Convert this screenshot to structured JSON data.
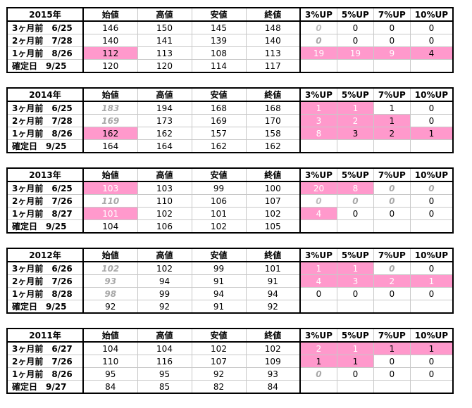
{
  "headers": [
    "始値",
    "高値",
    "安値",
    "終値",
    "3%UP",
    "5%UP",
    "7%UP",
    "10%UP"
  ],
  "blocks": [
    {
      "title": "2015年",
      "rows": [
        {
          "label": "3ヶ月前　6/25",
          "values": [
            "146",
            "150",
            "145",
            "148",
            "0",
            "0",
            "0",
            "0"
          ],
          "styles": [
            "",
            "",
            "",
            "",
            "i",
            "",
            "",
            ""
          ]
        },
        {
          "label": "2ヶ月前　7/28",
          "values": [
            "140",
            "141",
            "139",
            "140",
            "0",
            "0",
            "0",
            "0"
          ],
          "styles": [
            "",
            "",
            "",
            "",
            "gi",
            "",
            "",
            ""
          ]
        },
        {
          "label": "1ヶ月前　8/26",
          "values": [
            "112",
            "113",
            "108",
            "113",
            "19",
            "19",
            "9",
            "4"
          ],
          "styles": [
            "p",
            "",
            "",
            "",
            "pw",
            "pw",
            "pw",
            "pd"
          ]
        },
        {
          "label": "確定日　9/25",
          "values": [
            "120",
            "120",
            "114",
            "117",
            "",
            "",
            "",
            ""
          ],
          "styles": [
            "",
            "",
            "",
            "",
            "",
            "",
            "",
            ""
          ]
        }
      ]
    },
    {
      "title": "2014年",
      "rows": [
        {
          "label": "3ヶ月前　6/25",
          "values": [
            "183",
            "194",
            "168",
            "168",
            "1",
            "1",
            "1",
            "0"
          ],
          "styles": [
            "g",
            "",
            "",
            "",
            "pw",
            "pw",
            "",
            ""
          ]
        },
        {
          "label": "2ヶ月前　7/28",
          "values": [
            "169",
            "173",
            "169",
            "170",
            "3",
            "2",
            "1",
            "0"
          ],
          "styles": [
            "g",
            "",
            "",
            "",
            "pw",
            "pw",
            "pd",
            ""
          ]
        },
        {
          "label": "1ヶ月前　8/26",
          "values": [
            "162",
            "162",
            "157",
            "158",
            "8",
            "3",
            "2",
            "1"
          ],
          "styles": [
            "p",
            "",
            "",
            "",
            "pw",
            "pd",
            "pd",
            "pd"
          ]
        },
        {
          "label": "確定日　9/25",
          "values": [
            "164",
            "164",
            "162",
            "162",
            "",
            "",
            "",
            ""
          ],
          "styles": [
            "",
            "",
            "",
            "",
            "",
            "",
            "",
            ""
          ]
        }
      ]
    },
    {
      "title": "2013年",
      "rows": [
        {
          "label": "3ヶ月前　6/25",
          "values": [
            "103",
            "103",
            "99",
            "100",
            "20",
            "8",
            "0",
            "0"
          ],
          "styles": [
            "pw",
            "",
            "",
            "",
            "pw",
            "pw",
            "g",
            "g"
          ]
        },
        {
          "label": "2ヶ月前　7/26",
          "values": [
            "110",
            "110",
            "106",
            "107",
            "0",
            "0",
            "0",
            "0"
          ],
          "styles": [
            "g",
            "",
            "",
            "",
            "i",
            "gi",
            "g",
            ""
          ]
        },
        {
          "label": "1ヶ月前　8/27",
          "values": [
            "101",
            "102",
            "101",
            "102",
            "4",
            "0",
            "0",
            "0"
          ],
          "styles": [
            "pw",
            "",
            "",
            "",
            "pw",
            "",
            "",
            ""
          ]
        },
        {
          "label": "確定日　9/25",
          "values": [
            "104",
            "106",
            "102",
            "105",
            "",
            "",
            "",
            ""
          ],
          "styles": [
            "",
            "",
            "",
            "",
            "",
            "",
            "",
            ""
          ]
        }
      ]
    },
    {
      "title": "2012年",
      "rows": [
        {
          "label": "3ヶ月前　6/26",
          "values": [
            "102",
            "102",
            "99",
            "101",
            "1",
            "1",
            "0",
            "0"
          ],
          "styles": [
            "g",
            "",
            "",
            "",
            "pw",
            "pw",
            "g",
            ""
          ]
        },
        {
          "label": "2ヶ月前　7/26",
          "values": [
            "93",
            "94",
            "91",
            "91",
            "4",
            "3",
            "2",
            "1"
          ],
          "styles": [
            "g",
            "",
            "",
            "",
            "pw",
            "pw",
            "pw",
            "pw"
          ]
        },
        {
          "label": "1ヶ月前　8/28",
          "values": [
            "98",
            "99",
            "94",
            "94",
            "0",
            "0",
            "0",
            "0"
          ],
          "styles": [
            "g",
            "",
            "",
            "",
            "",
            "",
            "",
            ""
          ]
        },
        {
          "label": "確定日　9/25",
          "values": [
            "92",
            "92",
            "91",
            "92",
            "",
            "",
            "",
            ""
          ],
          "styles": [
            "",
            "",
            "",
            "",
            "",
            "",
            "",
            ""
          ]
        }
      ]
    },
    {
      "title": "2011年",
      "rows": [
        {
          "label": "3ヶ月前　6/27",
          "values": [
            "104",
            "104",
            "102",
            "102",
            "2",
            "1",
            "1",
            "1"
          ],
          "styles": [
            "",
            "",
            "",
            "",
            "pw",
            "pw",
            "pd",
            "pd"
          ]
        },
        {
          "label": "2ヶ月前　7/26",
          "values": [
            "110",
            "116",
            "107",
            "109",
            "1",
            "1",
            "0",
            "0"
          ],
          "styles": [
            "",
            "",
            "",
            "",
            "pd",
            "pd",
            "",
            ""
          ]
        },
        {
          "label": "1ヶ月前　8/26",
          "values": [
            "95",
            "95",
            "92",
            "93",
            "0",
            "0",
            "0",
            "0"
          ],
          "styles": [
            "",
            "",
            "",
            "",
            "gi",
            "",
            "",
            ""
          ]
        },
        {
          "label": "確定日　9/27",
          "values": [
            "84",
            "85",
            "82",
            "84",
            "",
            "",
            "",
            ""
          ],
          "styles": [
            "",
            "",
            "",
            "",
            "",
            "",
            "",
            ""
          ]
        }
      ]
    }
  ],
  "colors": {
    "highlight": "#ff99cc",
    "faded": "#a8a8a8"
  }
}
